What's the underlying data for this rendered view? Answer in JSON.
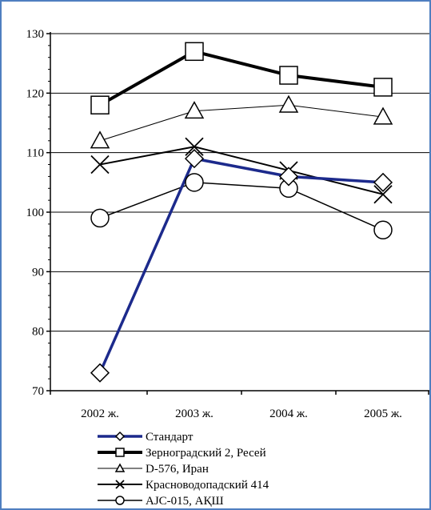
{
  "chart_data": {
    "type": "line",
    "title": "",
    "xlabel": "",
    "ylabel": "",
    "categories": [
      "2002 ж.",
      "2003 ж.",
      "2004 ж.",
      "2005 ж."
    ],
    "ylim": [
      70,
      130
    ],
    "yticks": [
      70,
      80,
      90,
      100,
      110,
      120,
      130
    ],
    "grid": "horizontal",
    "legend_position": "bottom",
    "series": [
      {
        "name": "Стандарт",
        "marker": "diamond",
        "color": "#1c2a8c",
        "width": 3.5,
        "values": [
          73,
          109,
          106,
          105
        ]
      },
      {
        "name": "Зерноградский 2, Ресей",
        "marker": "square",
        "color": "#000000",
        "width": 4,
        "values": [
          118,
          127,
          123,
          121
        ]
      },
      {
        "name": "D-576, Иран",
        "marker": "triangle",
        "color": "#000000",
        "width": 1,
        "values": [
          112,
          117,
          118,
          116
        ]
      },
      {
        "name": "Красноводопадский 414",
        "marker": "x",
        "color": "#000000",
        "width": 2,
        "values": [
          108,
          111,
          107,
          103
        ]
      },
      {
        "name": "AJC-015, АҚШ",
        "marker": "circle",
        "color": "#000000",
        "width": 1.5,
        "values": [
          99,
          105,
          104,
          97
        ]
      }
    ]
  }
}
